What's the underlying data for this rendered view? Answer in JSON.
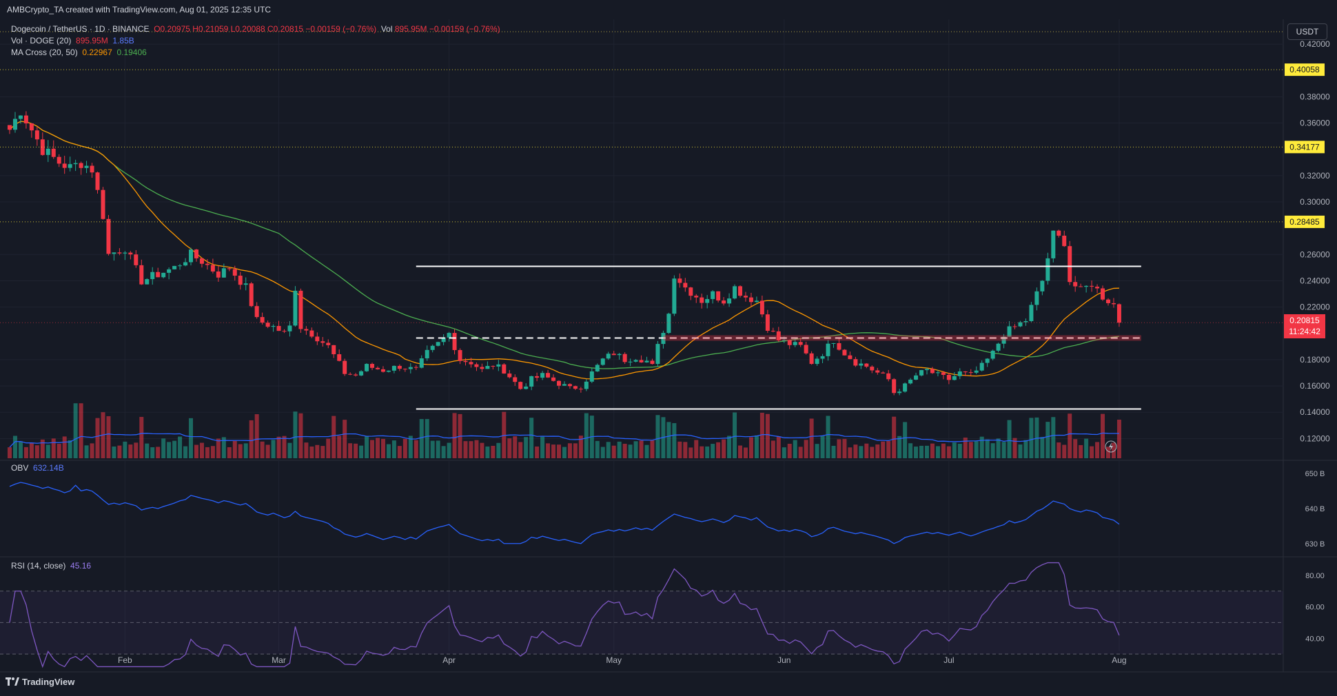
{
  "header": {
    "caption": "AMBCrypto_TA created with TradingView.com, Aug 01, 2025 12:35 UTC"
  },
  "legend": {
    "symbol": "Dogecoin / TetherUS · 1D · BINANCE",
    "ohlc": "O0.20975 H0.21059 L0.20088 C0.20815 −0.00159 (−0.76%)",
    "vol_text": "Vol",
    "vol_value": "895.95M −0.00159 (−0.76%)",
    "vol_doge_label": "Vol · DOGE (20)",
    "vol_doge_v1": "895.95M",
    "vol_doge_v2": "1.85B",
    "ma_label": "MA Cross (20, 50)",
    "ma_v1": "0.22967",
    "ma_v2": "0.19406"
  },
  "obv": {
    "label": "OBV",
    "value": "632.14B",
    "ticks": [
      "650 B",
      "640 B",
      "630 B"
    ]
  },
  "rsi": {
    "label": "RSI (14, close)",
    "value": "45.16",
    "ticks": [
      "80.00",
      "60.00",
      "40.00"
    ]
  },
  "currency": "USDT",
  "last_price": {
    "value": "0.20815",
    "countdown": "11:24:42"
  },
  "footer": {
    "brand": "TradingView"
  },
  "colors": {
    "up": "#22ab94",
    "down": "#f23645",
    "bg": "#161a25",
    "ma20": "#ff9800",
    "ma50": "#4caf50",
    "vol_ma": "#2962ff",
    "obv": "#2962ff",
    "rsi": "#7e57c2",
    "level": "#ffeb3b"
  },
  "chart_data": {
    "type": "candlestick",
    "x_axis": {
      "labels": [
        "Feb",
        "Mar",
        "Apr",
        "May",
        "Jun",
        "Jul",
        "Aug"
      ],
      "label_day_index": [
        21,
        49,
        80,
        110,
        141,
        171,
        202
      ]
    },
    "y_axis": {
      "min": 0.105,
      "max": 0.43,
      "ticks": [
        "0.42000",
        "0.38000",
        "0.36000",
        "0.32000",
        "0.30000",
        "0.26000",
        "0.24000",
        "0.22000",
        "0.18000",
        "0.16000",
        "0.14000",
        "0.12000"
      ]
    },
    "tick_values": [
      0.42,
      0.38,
      0.36,
      0.32,
      0.3,
      0.26,
      0.24,
      0.22,
      0.18,
      0.16,
      0.14,
      0.12
    ],
    "horizontal_levels": [
      {
        "value": 0.40058,
        "label": "0.40058",
        "style": "dotted-yellow"
      },
      {
        "value": 0.34177,
        "label": "0.34177",
        "style": "dotted-yellow"
      },
      {
        "value": 0.28485,
        "label": "0.28485",
        "style": "dotted-yellow"
      }
    ],
    "range_lines": [
      {
        "value": 0.251,
        "from_day": 74,
        "to_day": 206,
        "style": "solid-white"
      },
      {
        "value": 0.1965,
        "from_day": 74,
        "to_day": 206,
        "style": "dashed-white"
      },
      {
        "value": 0.1425,
        "from_day": 74,
        "to_day": 206,
        "style": "solid-white"
      }
    ],
    "close_anchors": [
      [
        0,
        0.355
      ],
      [
        2,
        0.37
      ],
      [
        6,
        0.34
      ],
      [
        9,
        0.33
      ],
      [
        11,
        0.326
      ],
      [
        13,
        0.33
      ],
      [
        15,
        0.325
      ],
      [
        17,
        0.29
      ],
      [
        18,
        0.26
      ],
      [
        21,
        0.265
      ],
      [
        24,
        0.24
      ],
      [
        27,
        0.245
      ],
      [
        30,
        0.25
      ],
      [
        33,
        0.26
      ],
      [
        35,
        0.255
      ],
      [
        38,
        0.245
      ],
      [
        40,
        0.25
      ],
      [
        43,
        0.235
      ],
      [
        45,
        0.21
      ],
      [
        48,
        0.205
      ],
      [
        50,
        0.2
      ],
      [
        51,
        0.205
      ],
      [
        52,
        0.235
      ],
      [
        53,
        0.205
      ],
      [
        55,
        0.2
      ],
      [
        58,
        0.19
      ],
      [
        61,
        0.17
      ],
      [
        63,
        0.168
      ],
      [
        65,
        0.175
      ],
      [
        68,
        0.172
      ],
      [
        71,
        0.175
      ],
      [
        74,
        0.172
      ],
      [
        76,
        0.185
      ],
      [
        78,
        0.192
      ],
      [
        80,
        0.2
      ],
      [
        82,
        0.18
      ],
      [
        84,
        0.178
      ],
      [
        86,
        0.172
      ],
      [
        88,
        0.176
      ],
      [
        90,
        0.172
      ],
      [
        93,
        0.158
      ],
      [
        95,
        0.165
      ],
      [
        97,
        0.168
      ],
      [
        100,
        0.162
      ],
      [
        102,
        0.158
      ],
      [
        104,
        0.16
      ],
      [
        106,
        0.17
      ],
      [
        108,
        0.18
      ],
      [
        110,
        0.185
      ],
      [
        112,
        0.18
      ],
      [
        114,
        0.182
      ],
      [
        116,
        0.179
      ],
      [
        117,
        0.175
      ],
      [
        118,
        0.19
      ],
      [
        120,
        0.215
      ],
      [
        121,
        0.245
      ],
      [
        123,
        0.235
      ],
      [
        126,
        0.225
      ],
      [
        128,
        0.23
      ],
      [
        130,
        0.225
      ],
      [
        132,
        0.235
      ],
      [
        134,
        0.228
      ],
      [
        136,
        0.225
      ],
      [
        138,
        0.205
      ],
      [
        140,
        0.195
      ],
      [
        142,
        0.192
      ],
      [
        144,
        0.19
      ],
      [
        146,
        0.178
      ],
      [
        148,
        0.185
      ],
      [
        150,
        0.195
      ],
      [
        152,
        0.185
      ],
      [
        154,
        0.178
      ],
      [
        156,
        0.175
      ],
      [
        158,
        0.17
      ],
      [
        160,
        0.165
      ],
      [
        161,
        0.155
      ],
      [
        163,
        0.16
      ],
      [
        165,
        0.168
      ],
      [
        167,
        0.172
      ],
      [
        169,
        0.168
      ],
      [
        171,
        0.165
      ],
      [
        173,
        0.17
      ],
      [
        175,
        0.168
      ],
      [
        177,
        0.175
      ],
      [
        179,
        0.185
      ],
      [
        181,
        0.2
      ],
      [
        183,
        0.205
      ],
      [
        185,
        0.21
      ],
      [
        186,
        0.22
      ],
      [
        188,
        0.24
      ],
      [
        190,
        0.275
      ],
      [
        192,
        0.27
      ],
      [
        193,
        0.24
      ],
      [
        195,
        0.232
      ],
      [
        197,
        0.238
      ],
      [
        199,
        0.228
      ],
      [
        201,
        0.222
      ],
      [
        202,
        0.208
      ]
    ],
    "volume_scale_max": 1.85,
    "ma20_label": "MA 20",
    "ma50_label": "MA 50",
    "obv_range": [
      627,
      653
    ],
    "rsi_range": [
      20,
      90
    ],
    "rsi_bands": [
      70,
      50,
      30
    ]
  }
}
